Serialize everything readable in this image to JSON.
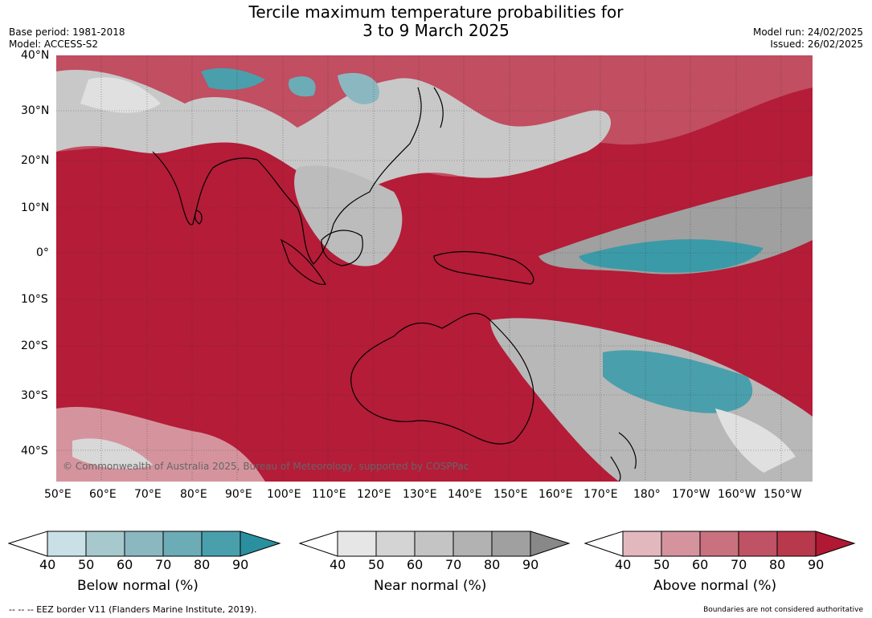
{
  "header": {
    "title_line1": "Tercile maximum temperature probabilities for",
    "title_line2": "3 to 9 March 2025",
    "base_period": "Base period: 1981-2018",
    "model": "Model: ACCESS-S2",
    "model_run": "Model run: 24/02/2025",
    "issued": "Issued: 26/02/2025"
  },
  "map": {
    "lat_labels": [
      "40°N",
      "30°N",
      "20°N",
      "10°N",
      "0°",
      "10°S",
      "20°S",
      "30°S",
      "40°S"
    ],
    "lon_labels": [
      "50°E",
      "60°E",
      "70°E",
      "80°E",
      "90°E",
      "100°E",
      "110°E",
      "120°E",
      "130°E",
      "140°E",
      "150°E",
      "160°E",
      "170°E",
      "180°",
      "170°W",
      "160°W",
      "150°W"
    ],
    "copyright": "© Commonwealth of Australia 2025, Bureau of Meteorology, supported by COSPPac",
    "colors": {
      "above": "#b41c38",
      "near": "#a0a0a0",
      "below": "#3b9aa8",
      "land_outline": "#000000"
    }
  },
  "colorbars": [
    {
      "label": "Below normal (%)",
      "ticks": [
        "40",
        "50",
        "60",
        "70",
        "80",
        "90"
      ],
      "colors": [
        "#c8e0e6",
        "#a7c9cd",
        "#8bb7c1",
        "#6bacb6",
        "#4a9fac",
        "#2a8f9e"
      ]
    },
    {
      "label": "Near normal (%)",
      "ticks": [
        "40",
        "50",
        "60",
        "70",
        "80",
        "90"
      ],
      "colors": [
        "#e6e6e6",
        "#d4d4d4",
        "#c4c4c4",
        "#b2b2b2",
        "#a0a0a0",
        "#888888"
      ]
    },
    {
      "label": "Above normal (%)",
      "ticks": [
        "40",
        "50",
        "60",
        "70",
        "80",
        "90"
      ],
      "colors": [
        "#e2b8be",
        "#d5949d",
        "#c9717e",
        "#bf5264",
        "#b8384c",
        "#b01833"
      ]
    }
  ],
  "footer": {
    "eez_legend": "--  --  -- EEZ border V11 (Flanders Marine Institute, 2019).",
    "disclaimer": "Boundaries are not considered authoritative"
  }
}
